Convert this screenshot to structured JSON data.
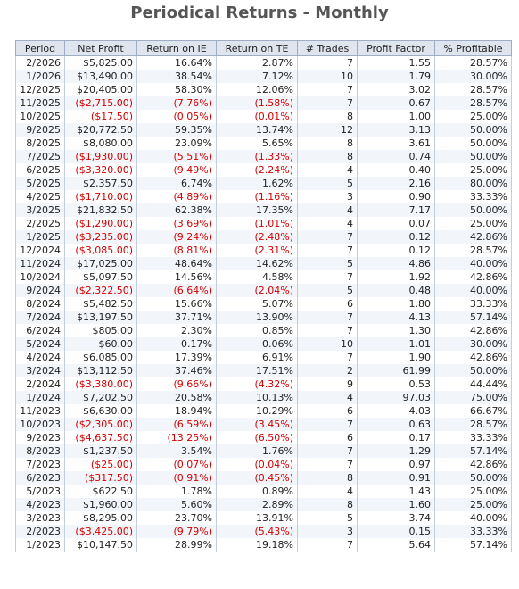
{
  "header": {
    "title": "Periodical Returns - Monthly"
  },
  "table": {
    "columns": [
      "Period",
      "Net Profit",
      "Return on IE",
      "Return on TE",
      "# Trades",
      "Profit Factor",
      "% Profitable"
    ],
    "rows": [
      [
        "2/2026",
        "$5,825.00",
        "16.64%",
        "2.87%",
        "7",
        "1.55",
        "28.57%"
      ],
      [
        "1/2026",
        "$13,490.00",
        "38.54%",
        "7.12%",
        "10",
        "1.79",
        "30.00%"
      ],
      [
        "12/2025",
        "$20,405.00",
        "58.30%",
        "12.06%",
        "7",
        "3.02",
        "28.57%"
      ],
      [
        "11/2025",
        "($2,715.00)",
        "(7.76%)",
        "(1.58%)",
        "7",
        "0.67",
        "28.57%"
      ],
      [
        "10/2025",
        "($17.50)",
        "(0.05%)",
        "(0.01%)",
        "8",
        "1.00",
        "25.00%"
      ],
      [
        "9/2025",
        "$20,772.50",
        "59.35%",
        "13.74%",
        "12",
        "3.13",
        "50.00%"
      ],
      [
        "8/2025",
        "$8,080.00",
        "23.09%",
        "5.65%",
        "8",
        "3.61",
        "50.00%"
      ],
      [
        "7/2025",
        "($1,930.00)",
        "(5.51%)",
        "(1.33%)",
        "8",
        "0.74",
        "50.00%"
      ],
      [
        "6/2025",
        "($3,320.00)",
        "(9.49%)",
        "(2.24%)",
        "4",
        "0.40",
        "25.00%"
      ],
      [
        "5/2025",
        "$2,357.50",
        "6.74%",
        "1.62%",
        "5",
        "2.16",
        "80.00%"
      ],
      [
        "4/2025",
        "($1,710.00)",
        "(4.89%)",
        "(1.16%)",
        "3",
        "0.90",
        "33.33%"
      ],
      [
        "3/2025",
        "$21,832.50",
        "62.38%",
        "17.35%",
        "4",
        "7.17",
        "50.00%"
      ],
      [
        "2/2025",
        "($1,290.00)",
        "(3.69%)",
        "(1.01%)",
        "4",
        "0.07",
        "25.00%"
      ],
      [
        "1/2025",
        "($3,235.00)",
        "(9.24%)",
        "(2.48%)",
        "7",
        "0.12",
        "42.86%"
      ],
      [
        "12/2024",
        "($3,085.00)",
        "(8.81%)",
        "(2.31%)",
        "7",
        "0.12",
        "28.57%"
      ],
      [
        "11/2024",
        "$17,025.00",
        "48.64%",
        "14.62%",
        "5",
        "4.86",
        "40.00%"
      ],
      [
        "10/2024",
        "$5,097.50",
        "14.56%",
        "4.58%",
        "7",
        "1.92",
        "42.86%"
      ],
      [
        "9/2024",
        "($2,322.50)",
        "(6.64%)",
        "(2.04%)",
        "5",
        "0.48",
        "40.00%"
      ],
      [
        "8/2024",
        "$5,482.50",
        "15.66%",
        "5.07%",
        "6",
        "1.80",
        "33.33%"
      ],
      [
        "7/2024",
        "$13,197.50",
        "37.71%",
        "13.90%",
        "7",
        "4.13",
        "57.14%"
      ],
      [
        "6/2024",
        "$805.00",
        "2.30%",
        "0.85%",
        "7",
        "1.30",
        "42.86%"
      ],
      [
        "5/2024",
        "$60.00",
        "0.17%",
        "0.06%",
        "10",
        "1.01",
        "30.00%"
      ],
      [
        "4/2024",
        "$6,085.00",
        "17.39%",
        "6.91%",
        "7",
        "1.90",
        "42.86%"
      ],
      [
        "3/2024",
        "$13,112.50",
        "37.46%",
        "17.51%",
        "2",
        "61.99",
        "50.00%"
      ],
      [
        "2/2024",
        "($3,380.00)",
        "(9.66%)",
        "(4.32%)",
        "9",
        "0.53",
        "44.44%"
      ],
      [
        "1/2024",
        "$7,202.50",
        "20.58%",
        "10.13%",
        "4",
        "97.03",
        "75.00%"
      ],
      [
        "11/2023",
        "$6,630.00",
        "18.94%",
        "10.29%",
        "6",
        "4.03",
        "66.67%"
      ],
      [
        "10/2023",
        "($2,305.00)",
        "(6.59%)",
        "(3.45%)",
        "7",
        "0.63",
        "28.57%"
      ],
      [
        "9/2023",
        "($4,637.50)",
        "(13.25%)",
        "(6.50%)",
        "6",
        "0.17",
        "33.33%"
      ],
      [
        "8/2023",
        "$1,237.50",
        "3.54%",
        "1.76%",
        "7",
        "1.29",
        "57.14%"
      ],
      [
        "7/2023",
        "($25.00)",
        "(0.07%)",
        "(0.04%)",
        "7",
        "0.97",
        "42.86%"
      ],
      [
        "6/2023",
        "($317.50)",
        "(0.91%)",
        "(0.45%)",
        "8",
        "0.91",
        "50.00%"
      ],
      [
        "5/2023",
        "$622.50",
        "1.78%",
        "0.89%",
        "4",
        "1.43",
        "25.00%"
      ],
      [
        "4/2023",
        "$1,960.00",
        "5.60%",
        "2.89%",
        "8",
        "1.60",
        "25.00%"
      ],
      [
        "3/2023",
        "$8,295.00",
        "23.70%",
        "13.91%",
        "5",
        "3.74",
        "40.00%"
      ],
      [
        "2/2023",
        "($3,425.00)",
        "(9.79%)",
        "(5.43%)",
        "3",
        "0.15",
        "33.33%"
      ],
      [
        "1/2023",
        "$10,147.50",
        "28.99%",
        "19.18%",
        "7",
        "5.64",
        "57.14%"
      ]
    ]
  }
}
